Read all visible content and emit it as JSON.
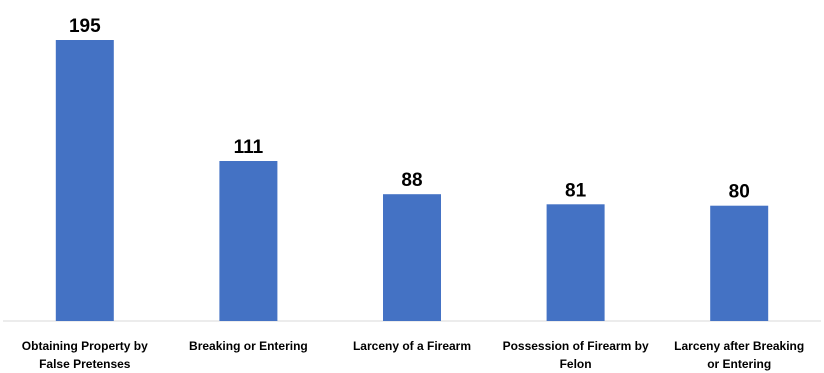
{
  "chart_data": {
    "type": "bar",
    "categories": [
      [
        "Obtaining Property by",
        "False Pretenses"
      ],
      [
        "Breaking or Entering"
      ],
      [
        "Larceny of a Firearm"
      ],
      [
        "Possession of Firearm by",
        "Felon"
      ],
      [
        "Larceny after Breaking",
        "or Entering"
      ]
    ],
    "values": [
      195,
      111,
      88,
      81,
      80
    ],
    "data_labels": [
      "195",
      "111",
      "88",
      "81",
      "80"
    ],
    "title": "",
    "xlabel": "",
    "ylabel": "",
    "ylim": [
      0,
      195
    ],
    "grid": false,
    "legend": "none",
    "colors": {
      "bar": "#4472C4",
      "axis": "#d9d9d9"
    }
  }
}
